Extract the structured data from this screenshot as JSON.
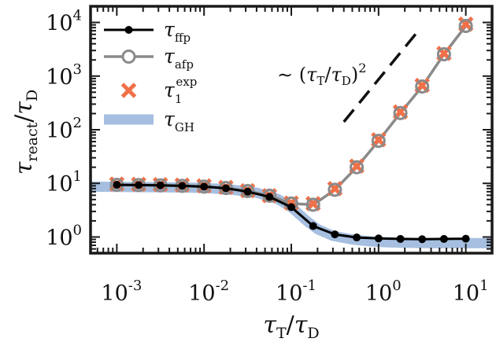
{
  "chart_data": {
    "type": "line",
    "x_scale": "log",
    "y_scale": "log",
    "xlim": [
      0.0005,
      20
    ],
    "ylim": [
      0.5,
      20000
    ],
    "xlabel": "τT/τD",
    "ylabel": "τreact/τD",
    "x_tick_values": [
      0.001,
      0.01,
      0.1,
      1,
      10
    ],
    "x_tick_labels": [
      {
        "base": "10",
        "exp": "-3"
      },
      {
        "base": "10",
        "exp": "-2"
      },
      {
        "base": "10",
        "exp": "-1"
      },
      {
        "base": "10",
        "exp": "0"
      },
      {
        "base": "10",
        "exp": "1"
      }
    ],
    "y_tick_values": [
      1,
      10,
      100,
      1000,
      10000
    ],
    "y_tick_labels": [
      {
        "base": "10",
        "exp": "0"
      },
      {
        "base": "10",
        "exp": "1"
      },
      {
        "base": "10",
        "exp": "2"
      },
      {
        "base": "10",
        "exp": "3"
      },
      {
        "base": "10",
        "exp": "4"
      }
    ],
    "grid": false,
    "legend_position": "top-left",
    "x": [
      0.001,
      0.00178,
      0.00316,
      0.00562,
      0.01,
      0.0178,
      0.0316,
      0.0562,
      0.1,
      0.178,
      0.316,
      0.562,
      1,
      1.78,
      3.16,
      5.62,
      10
    ],
    "series": [
      {
        "name": "τffp",
        "legend_main": "τ",
        "legend_sub": "ffp",
        "style": "line-filled-circle",
        "color": "#000000",
        "values": [
          9.4,
          9.3,
          9.2,
          9.0,
          8.7,
          8.1,
          7.0,
          5.6,
          3.6,
          1.6,
          1.12,
          0.98,
          0.94,
          0.92,
          0.91,
          0.92,
          0.93
        ]
      },
      {
        "name": "τafp",
        "legend_main": "τ",
        "legend_sub": "afp",
        "style": "line-open-circle",
        "color": "#8a8a8a",
        "values": [
          9.4,
          9.3,
          9.2,
          9.0,
          8.7,
          8.2,
          7.2,
          5.9,
          4.2,
          4.0,
          7.6,
          20,
          62,
          205,
          640,
          2550,
          8600
        ]
      },
      {
        "name": "τ1exp",
        "legend_main": "τ",
        "legend_sub": "1",
        "legend_sup": "exp",
        "style": "cross",
        "color": "#f07048",
        "values": [
          9.7,
          9.6,
          9.5,
          9.3,
          9.0,
          8.4,
          7.3,
          5.9,
          4.3,
          4.2,
          8.0,
          21,
          65,
          215,
          670,
          2650,
          9300
        ]
      },
      {
        "name": "τGH",
        "legend_main": "τ",
        "legend_sub": "GH",
        "style": "thick-band",
        "color": "#a6bfe0",
        "curve_x": [
          0.0005,
          0.001,
          0.002,
          0.005,
          0.01,
          0.02,
          0.04,
          0.07,
          0.1,
          0.15,
          0.2,
          0.3,
          0.5,
          0.8,
          1.2,
          2,
          4,
          8,
          20
        ],
        "curve_y": [
          8.7,
          8.6,
          8.5,
          8.4,
          8.2,
          7.7,
          6.7,
          5.1,
          3.6,
          2.0,
          1.4,
          1.05,
          0.9,
          0.83,
          0.8,
          0.78,
          0.77,
          0.77,
          0.77
        ]
      }
    ],
    "annotation": {
      "text": "∼ (τT/τD)2",
      "line_x": [
        0.4,
        3.0
      ],
      "line_y": [
        140,
        7700
      ]
    }
  }
}
